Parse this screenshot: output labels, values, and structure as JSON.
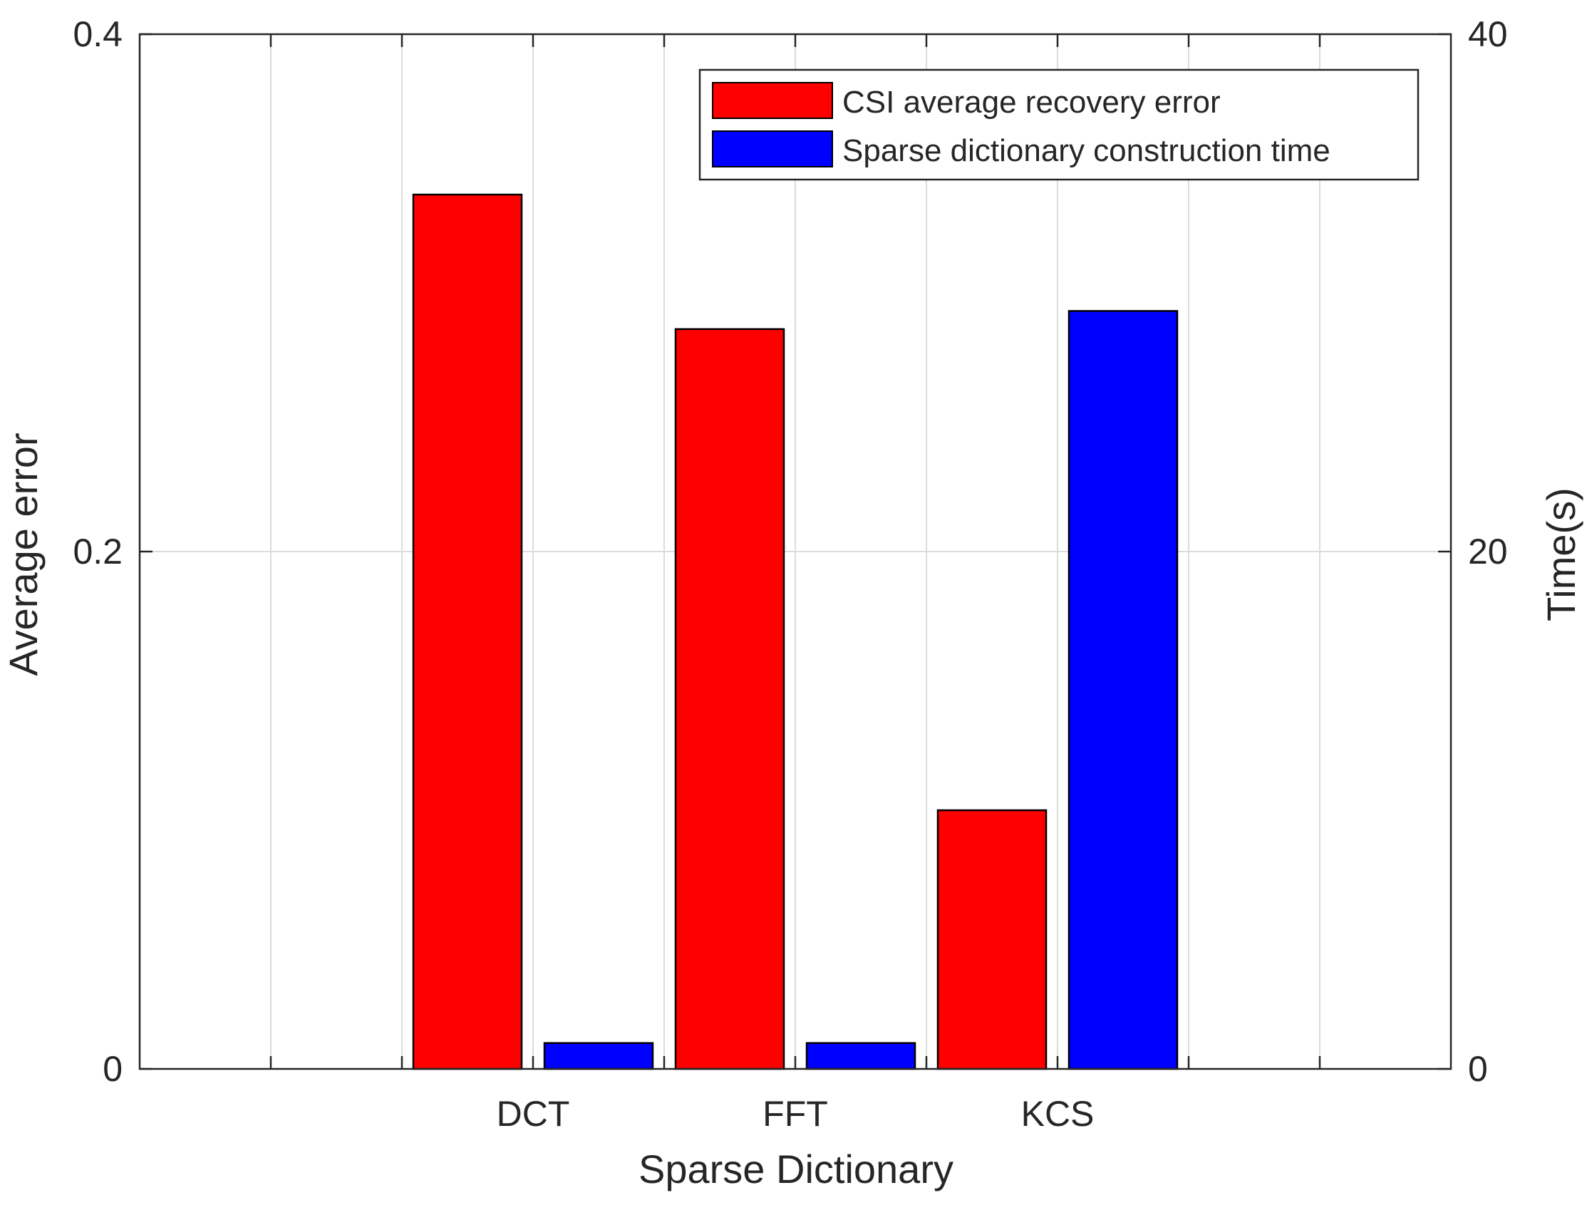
{
  "chart_data": {
    "type": "bar",
    "title": "",
    "xlabel": "Sparse Dictionary",
    "ylabel": "Average error",
    "y2label": "Time(s)",
    "categories": [
      "DCT",
      "FFT",
      "KCS"
    ],
    "ylim": [
      0,
      0.4
    ],
    "y2lim": [
      0,
      40
    ],
    "yticks": [
      "0",
      "0.2",
      "0.4"
    ],
    "y2ticks": [
      "0",
      "20",
      "40"
    ],
    "grid": true,
    "legend_position": "top-right",
    "series": [
      {
        "name": "CSI average recovery error",
        "axis": "left",
        "color": "#ff0000",
        "values": [
          0.338,
          0.286,
          0.1
        ]
      },
      {
        "name": "Sparse dictionary construction time",
        "axis": "right",
        "color": "#0000ff",
        "values": [
          1.0,
          1.0,
          29.3
        ]
      }
    ]
  }
}
